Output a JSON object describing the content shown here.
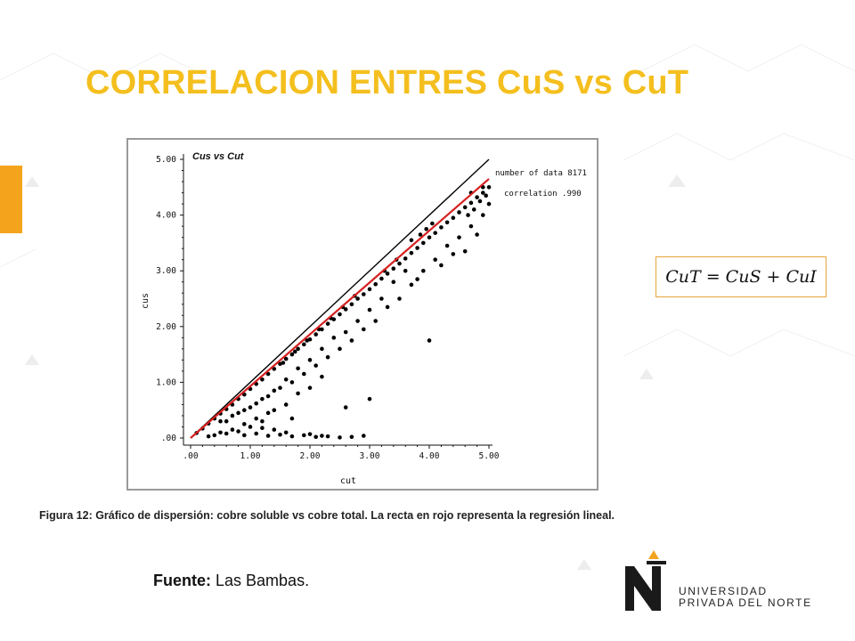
{
  "slide": {
    "title": "CORRELACION ENTRES CuS vs CuT",
    "formula": "CuT = CuS + CuI",
    "caption": "Figura 12: Gráfico de dispersión: cobre soluble vs cobre total. La recta en rojo representa la regresión lineal.",
    "source_label": "Fuente:",
    "source_value": "Las Bambas."
  },
  "logo": {
    "line1": "UNIVERSIDAD",
    "line2": "PRIVADA DEL NORTE"
  },
  "colors": {
    "title": "#F4BF1E",
    "accent_bar": "#F3A41C",
    "formula_border": "#E8A33A",
    "regression_line": "#D62020",
    "identity_line": "#000000",
    "points": "#000000"
  },
  "chart_data": {
    "type": "scatter",
    "title": "Cus vs Cut",
    "xlabel": "cut",
    "ylabel": "cus",
    "xlim": [
      0,
      5
    ],
    "ylim": [
      0,
      5
    ],
    "xticks": [
      ".00",
      "1.00",
      "2.00",
      "3.00",
      "4.00",
      "5.00"
    ],
    "yticks": [
      ".00",
      "1.00",
      "2.00",
      "3.00",
      "4.00",
      "5.00"
    ],
    "annotations": [
      "number of data 8171",
      "correlation .990"
    ],
    "identity_line": {
      "x": [
        0,
        5
      ],
      "y": [
        0,
        5
      ]
    },
    "regression_line": {
      "x": [
        0,
        5
      ],
      "y": [
        0,
        4.65
      ]
    },
    "points": [
      [
        0.1,
        0.09
      ],
      [
        0.2,
        0.17
      ],
      [
        0.3,
        0.26
      ],
      [
        0.4,
        0.35
      ],
      [
        0.5,
        0.44
      ],
      [
        0.6,
        0.52
      ],
      [
        0.7,
        0.6
      ],
      [
        0.8,
        0.7
      ],
      [
        0.9,
        0.78
      ],
      [
        1.0,
        0.88
      ],
      [
        1.1,
        0.97
      ],
      [
        1.2,
        1.05
      ],
      [
        1.3,
        1.15
      ],
      [
        1.4,
        1.24
      ],
      [
        1.5,
        1.33
      ],
      [
        1.6,
        1.42
      ],
      [
        1.7,
        1.5
      ],
      [
        1.8,
        1.6
      ],
      [
        1.9,
        1.68
      ],
      [
        2.0,
        1.77
      ],
      [
        2.1,
        1.86
      ],
      [
        2.2,
        1.95
      ],
      [
        2.3,
        2.05
      ],
      [
        2.4,
        2.13
      ],
      [
        2.5,
        2.22
      ],
      [
        2.6,
        2.31
      ],
      [
        2.7,
        2.4
      ],
      [
        2.8,
        2.5
      ],
      [
        2.9,
        2.58
      ],
      [
        3.0,
        2.67
      ],
      [
        3.1,
        2.76
      ],
      [
        3.2,
        2.86
      ],
      [
        3.3,
        2.95
      ],
      [
        3.4,
        3.04
      ],
      [
        3.5,
        3.13
      ],
      [
        3.6,
        3.22
      ],
      [
        3.7,
        3.32
      ],
      [
        3.8,
        3.41
      ],
      [
        3.9,
        3.5
      ],
      [
        4.0,
        3.6
      ],
      [
        4.1,
        3.68
      ],
      [
        4.2,
        3.78
      ],
      [
        4.3,
        3.87
      ],
      [
        4.4,
        3.95
      ],
      [
        4.5,
        4.05
      ],
      [
        4.6,
        4.14
      ],
      [
        4.7,
        4.22
      ],
      [
        4.8,
        4.32
      ],
      [
        4.9,
        4.4
      ],
      [
        5.0,
        4.5
      ],
      [
        0.5,
        0.3
      ],
      [
        0.7,
        0.4
      ],
      [
        0.9,
        0.5
      ],
      [
        1.1,
        0.62
      ],
      [
        1.3,
        0.75
      ],
      [
        1.5,
        0.9
      ],
      [
        1.7,
        1.0
      ],
      [
        1.9,
        1.15
      ],
      [
        2.1,
        1.3
      ],
      [
        2.3,
        1.45
      ],
      [
        2.5,
        1.6
      ],
      [
        2.7,
        1.75
      ],
      [
        2.9,
        1.95
      ],
      [
        3.1,
        2.1
      ],
      [
        3.3,
        2.35
      ],
      [
        3.5,
        2.5
      ],
      [
        3.7,
        2.75
      ],
      [
        3.9,
        3.0
      ],
      [
        4.1,
        3.2
      ],
      [
        4.3,
        3.45
      ],
      [
        4.5,
        3.6
      ],
      [
        4.7,
        3.8
      ],
      [
        4.9,
        4.0
      ],
      [
        5.0,
        4.2
      ],
      [
        4.8,
        3.65
      ],
      [
        4.6,
        3.35
      ],
      [
        4.2,
        3.1
      ],
      [
        3.8,
        2.85
      ],
      [
        3.6,
        3.0
      ],
      [
        3.4,
        2.8
      ],
      [
        3.2,
        2.5
      ],
      [
        3.0,
        2.3
      ],
      [
        2.8,
        2.1
      ],
      [
        2.6,
        1.9
      ],
      [
        2.4,
        1.8
      ],
      [
        2.2,
        1.6
      ],
      [
        2.0,
        1.4
      ],
      [
        1.8,
        1.25
      ],
      [
        1.6,
        1.05
      ],
      [
        1.4,
        0.85
      ],
      [
        1.2,
        0.7
      ],
      [
        1.0,
        0.55
      ],
      [
        0.8,
        0.45
      ],
      [
        0.6,
        0.3
      ],
      [
        2.0,
        0.9
      ],
      [
        2.2,
        1.1
      ],
      [
        1.8,
        0.8
      ],
      [
        1.6,
        0.6
      ],
      [
        1.4,
        0.5
      ],
      [
        1.7,
        0.35
      ],
      [
        1.2,
        0.3
      ],
      [
        1.0,
        0.2
      ],
      [
        0.8,
        0.12
      ],
      [
        0.9,
        0.05
      ],
      [
        1.1,
        0.08
      ],
      [
        1.3,
        0.04
      ],
      [
        1.5,
        0.06
      ],
      [
        1.7,
        0.03
      ],
      [
        1.9,
        0.05
      ],
      [
        2.1,
        0.02
      ],
      [
        2.3,
        0.03
      ],
      [
        2.5,
        0.01
      ],
      [
        2.7,
        0.02
      ],
      [
        2.2,
        0.04
      ],
      [
        2.0,
        0.07
      ],
      [
        1.6,
        0.1
      ],
      [
        1.4,
        0.15
      ],
      [
        1.2,
        0.18
      ],
      [
        2.6,
        0.55
      ],
      [
        3.0,
        0.7
      ],
      [
        4.0,
        1.75
      ],
      [
        2.9,
        0.04
      ],
      [
        0.4,
        0.05
      ],
      [
        0.6,
        0.08
      ],
      [
        0.3,
        0.03
      ],
      [
        0.5,
        0.1
      ],
      [
        0.7,
        0.15
      ],
      [
        0.9,
        0.25
      ],
      [
        1.1,
        0.35
      ],
      [
        1.3,
        0.45
      ],
      [
        4.4,
        3.3
      ],
      [
        4.7,
        4.4
      ],
      [
        4.9,
        4.5
      ],
      [
        4.85,
        4.25
      ],
      [
        4.95,
        4.35
      ],
      [
        4.75,
        4.1
      ],
      [
        4.65,
        4.0
      ],
      [
        3.7,
        3.55
      ],
      [
        3.85,
        3.65
      ],
      [
        3.95,
        3.75
      ],
      [
        4.05,
        3.85
      ],
      [
        3.45,
        3.2
      ],
      [
        3.25,
        3.0
      ],
      [
        2.75,
        2.55
      ],
      [
        2.55,
        2.35
      ],
      [
        2.35,
        2.15
      ],
      [
        2.15,
        1.95
      ],
      [
        1.95,
        1.75
      ],
      [
        1.75,
        1.55
      ],
      [
        1.55,
        1.35
      ]
    ]
  }
}
